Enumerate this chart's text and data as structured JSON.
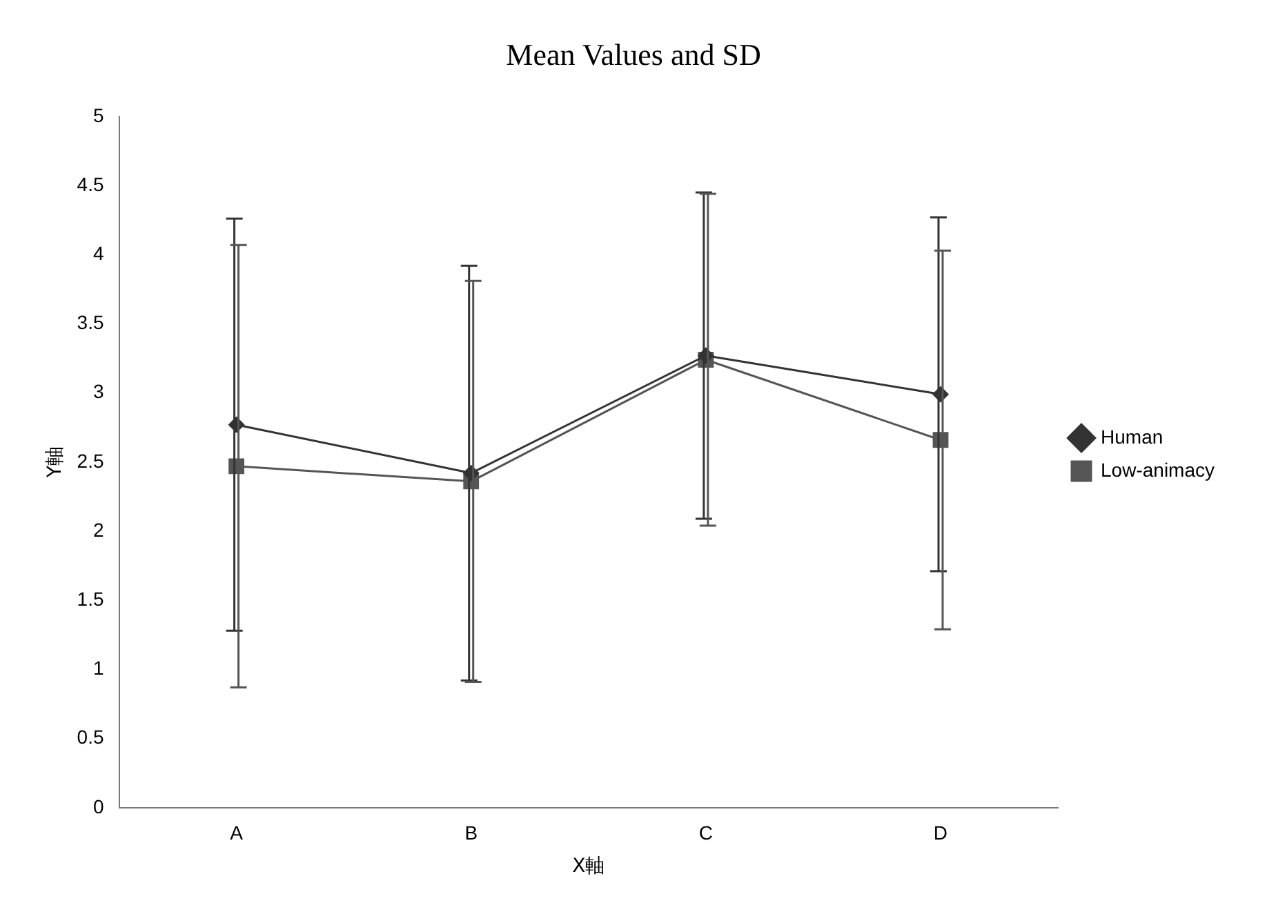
{
  "chart_data": {
    "type": "line",
    "title": "Mean Values and SD",
    "xlabel": "X軸",
    "ylabel": "Y軸",
    "categories": [
      "A",
      "B",
      "C",
      "D"
    ],
    "series": [
      {
        "name": "Human",
        "color": "#333333",
        "marker": "diamond",
        "values": [
          2.77,
          2.42,
          3.27,
          2.99
        ],
        "errors": [
          1.49,
          1.5,
          1.18,
          1.28
        ]
      },
      {
        "name": "Low-animacy",
        "color": "#555555",
        "marker": "square",
        "values": [
          2.47,
          2.36,
          3.24,
          2.66
        ],
        "errors": [
          1.6,
          1.45,
          1.2,
          1.37
        ]
      }
    ],
    "ylim": [
      0,
      5
    ],
    "yticks": [
      0,
      0.5,
      1,
      1.5,
      2,
      2.5,
      3,
      3.5,
      4,
      4.5,
      5
    ],
    "legend": "right"
  }
}
